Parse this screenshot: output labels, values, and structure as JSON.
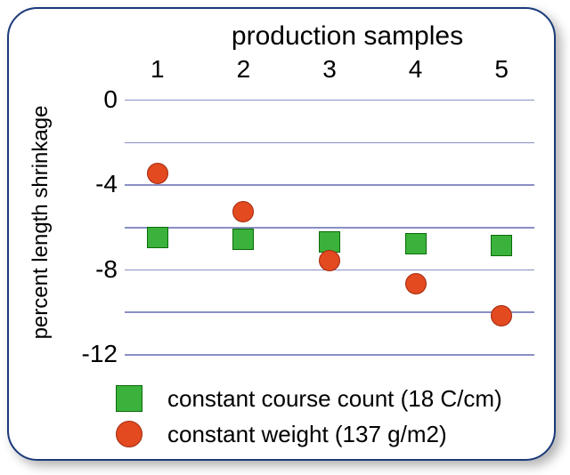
{
  "chart": {
    "type": "scatter",
    "title": "production samples",
    "title_fontsize": 30,
    "ylabel": "percent length shrinkage",
    "ylabel_fontsize": 24,
    "background_color": "#ffffff",
    "border_color": "#1a3a7a",
    "grid_color": "#8a8fc4",
    "x_categories": [
      "1",
      "2",
      "3",
      "4",
      "5"
    ],
    "x_fontsize": 28,
    "y_ticks": [
      0,
      -4,
      -8,
      -12
    ],
    "y_fontsize": 28,
    "ylim_top": 0.5,
    "ylim_bottom": -12.5,
    "gridlines_at": [
      0,
      -2,
      -4,
      -6,
      -8,
      -10,
      -12
    ],
    "series": [
      {
        "name": "constant_course_count",
        "label": "constant course count (18 C/cm)",
        "marker": "square",
        "color": "#3bb23b",
        "border": "#0a6b0a",
        "size": 24,
        "values": [
          -6.5,
          -6.6,
          -6.7,
          -6.8,
          -6.9
        ]
      },
      {
        "name": "constant_weight",
        "label": "constant weight (137 g/m2)",
        "marker": "circle",
        "color": "#e34a20",
        "border": "#a02a10",
        "size": 24,
        "values": [
          -3.5,
          -5.3,
          -7.6,
          -8.7,
          -10.2
        ]
      }
    ],
    "legend_marker_size": 30,
    "legend_fontsize": 26
  }
}
